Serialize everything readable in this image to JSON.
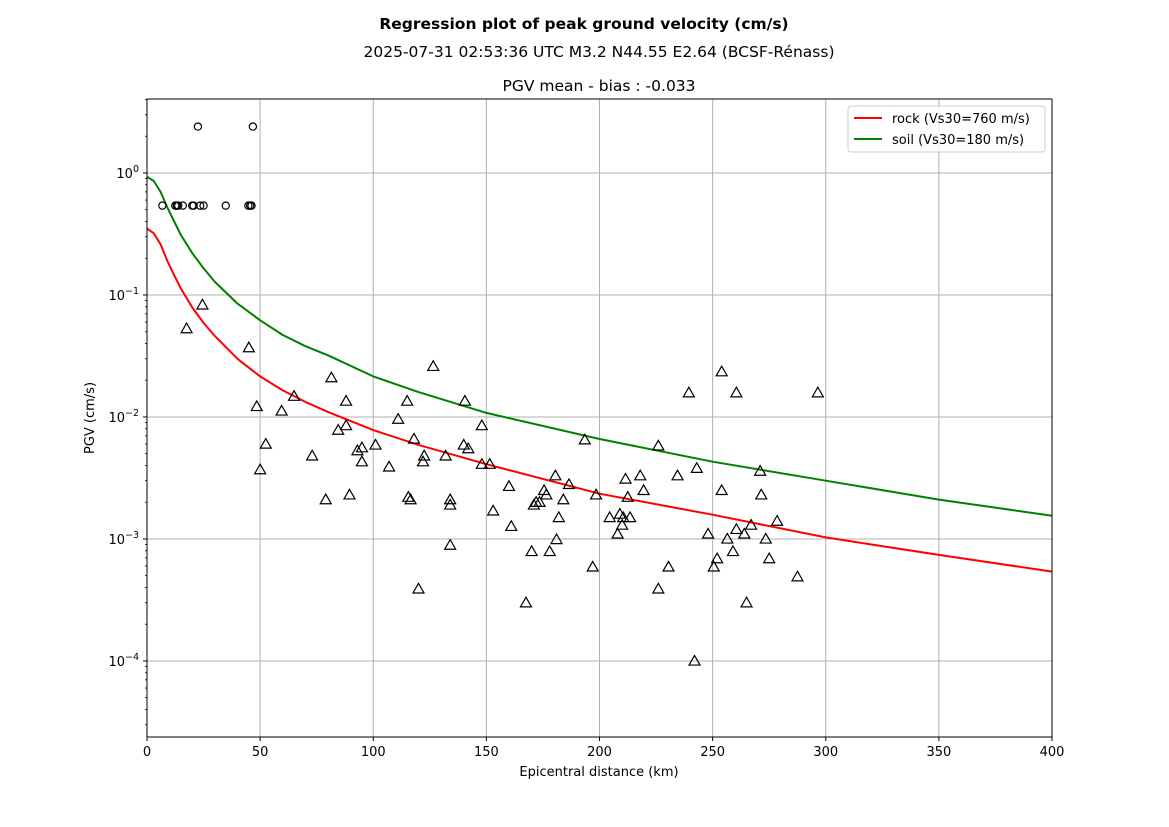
{
  "chart_data": {
    "type": "scatter",
    "title": "Regression plot of peak ground velocity (cm/s)",
    "subtitle": "2025-07-31 02:53:36 UTC M3.2 N44.55 E2.64 (BCSF-Rénass)",
    "axes_title": "PGV mean - bias : -0.033",
    "xlabel": "Epicentral distance (km)",
    "ylabel": "PGV (cm/s)",
    "xlim": [
      0,
      400
    ],
    "ylim": [
      2.38e-05,
      4.04
    ],
    "yscale": "log",
    "grid": true,
    "xticks": [
      {
        "value": 0,
        "label": "0"
      },
      {
        "value": 50,
        "label": "50"
      },
      {
        "value": 100,
        "label": "100"
      },
      {
        "value": 150,
        "label": "150"
      },
      {
        "value": 200,
        "label": "200"
      },
      {
        "value": 250,
        "label": "250"
      },
      {
        "value": 300,
        "label": "300"
      },
      {
        "value": 350,
        "label": "350"
      },
      {
        "value": 400,
        "label": "400"
      }
    ],
    "yticks": [
      {
        "exp": 0,
        "base": "10",
        "sup": "0"
      },
      {
        "exp": -1,
        "base": "10",
        "sup": "−1"
      },
      {
        "exp": -2,
        "base": "10",
        "sup": "−2"
      },
      {
        "exp": -3,
        "base": "10",
        "sup": "−3"
      },
      {
        "exp": -4,
        "base": "10",
        "sup": "−4"
      }
    ],
    "legend": {
      "placement": "top-right",
      "entries": [
        {
          "label": "rock (Vs30=760 m/s)",
          "color": "#ff0000"
        },
        {
          "label": "soil (Vs30=180 m/s)",
          "color": "#008000"
        }
      ]
    },
    "lines": [
      {
        "name": "rock (Vs30=760 m/s)",
        "color": "#ff0000",
        "x": [
          0,
          3,
          6,
          9,
          12,
          15,
          20,
          25,
          30,
          40,
          50,
          60,
          70,
          80,
          100,
          120,
          150,
          200,
          250,
          300,
          350,
          400
        ],
        "y": [
          0.35,
          0.32,
          0.26,
          0.19,
          0.145,
          0.113,
          0.079,
          0.059,
          0.046,
          0.03,
          0.0215,
          0.0165,
          0.0133,
          0.011,
          0.0078,
          0.0059,
          0.0041,
          0.00235,
          0.00158,
          0.00103,
          0.00074,
          0.00054
        ]
      },
      {
        "name": "soil (Vs30=180 m/s)",
        "color": "#008000",
        "x": [
          0,
          3,
          6,
          9,
          12,
          15,
          20,
          25,
          30,
          40,
          50,
          60,
          70,
          80,
          100,
          120,
          150,
          200,
          250,
          300,
          350,
          400
        ],
        "y": [
          0.93,
          0.86,
          0.7,
          0.52,
          0.4,
          0.31,
          0.22,
          0.165,
          0.128,
          0.085,
          0.062,
          0.047,
          0.038,
          0.032,
          0.0215,
          0.016,
          0.0108,
          0.0066,
          0.0043,
          0.003,
          0.0021,
          0.00155
        ]
      }
    ],
    "scatter": [
      {
        "name": "circles",
        "marker": "circle",
        "points": [
          [
            22.5,
            2.4
          ],
          [
            46.8,
            2.4
          ],
          [
            6.8,
            0.54
          ],
          [
            12.5,
            0.54
          ],
          [
            13.2,
            0.54
          ],
          [
            13.8,
            0.54
          ],
          [
            15.8,
            0.54
          ],
          [
            20.0,
            0.54
          ],
          [
            20.6,
            0.54
          ],
          [
            23.5,
            0.54
          ],
          [
            25.0,
            0.54
          ],
          [
            34.8,
            0.54
          ],
          [
            44.8,
            0.54
          ],
          [
            45.6,
            0.54
          ],
          [
            46.2,
            0.54
          ]
        ]
      },
      {
        "name": "triangles",
        "marker": "triangle",
        "points": [
          [
            17.5,
            0.053
          ],
          [
            24.5,
            0.083
          ],
          [
            45,
            0.037
          ],
          [
            48.5,
            0.0122
          ],
          [
            50,
            0.0037
          ],
          [
            52.5,
            0.006
          ],
          [
            59.5,
            0.0112
          ],
          [
            65,
            0.0148
          ],
          [
            73,
            0.0048
          ],
          [
            79,
            0.0021
          ],
          [
            81.5,
            0.021
          ],
          [
            84.5,
            0.0078
          ],
          [
            88,
            0.0135
          ],
          [
            88,
            0.0085
          ],
          [
            89.5,
            0.0023
          ],
          [
            93,
            0.0053
          ],
          [
            95,
            0.0043
          ],
          [
            95,
            0.0056
          ],
          [
            101,
            0.0059
          ],
          [
            107,
            0.0039
          ],
          [
            111,
            0.0096
          ],
          [
            115,
            0.0135
          ],
          [
            115.5,
            0.0022
          ],
          [
            116.5,
            0.0021
          ],
          [
            118,
            0.0066
          ],
          [
            120,
            0.00039
          ],
          [
            122,
            0.0043
          ],
          [
            122.5,
            0.0048
          ],
          [
            126.5,
            0.026
          ],
          [
            132,
            0.0048
          ],
          [
            134,
            0.0021
          ],
          [
            134,
            0.0019
          ],
          [
            134,
            0.00089
          ],
          [
            140,
            0.0059
          ],
          [
            140.5,
            0.0135
          ],
          [
            142,
            0.0055
          ],
          [
            148,
            0.0085
          ],
          [
            148,
            0.0041
          ],
          [
            151.5,
            0.0041
          ],
          [
            153,
            0.0017
          ],
          [
            160,
            0.0027
          ],
          [
            161,
            0.00127
          ],
          [
            167.5,
            0.0003
          ],
          [
            170,
            0.00079
          ],
          [
            171,
            0.0019
          ],
          [
            172,
            0.002
          ],
          [
            173.5,
            0.002
          ],
          [
            175.5,
            0.0025
          ],
          [
            176.5,
            0.0023
          ],
          [
            178,
            0.00079
          ],
          [
            180.5,
            0.0033
          ],
          [
            181,
            0.00099
          ],
          [
            182,
            0.0015
          ],
          [
            184,
            0.0021
          ],
          [
            186.5,
            0.0028
          ],
          [
            193.5,
            0.0065
          ],
          [
            197,
            0.00059
          ],
          [
            198.5,
            0.0023
          ],
          [
            204.5,
            0.0015
          ],
          [
            208,
            0.0011
          ],
          [
            209,
            0.0016
          ],
          [
            210,
            0.0013
          ],
          [
            210.5,
            0.0015
          ],
          [
            211.5,
            0.0031
          ],
          [
            212.5,
            0.0022
          ],
          [
            213.5,
            0.0015
          ],
          [
            218,
            0.0033
          ],
          [
            219.5,
            0.0025
          ],
          [
            226,
            0.0058
          ],
          [
            226,
            0.00039
          ],
          [
            230.5,
            0.00059
          ],
          [
            234.5,
            0.0033
          ],
          [
            239.5,
            0.0158
          ],
          [
            242,
            0.0001
          ],
          [
            243,
            0.0038
          ],
          [
            248,
            0.0011
          ],
          [
            250.5,
            0.00059
          ],
          [
            252,
            0.00069
          ],
          [
            254,
            0.0235
          ],
          [
            254,
            0.0025
          ],
          [
            256.5,
            0.001
          ],
          [
            259,
            0.00079
          ],
          [
            260.5,
            0.0158
          ],
          [
            260.5,
            0.0012
          ],
          [
            264,
            0.0011
          ],
          [
            265,
            0.0003
          ],
          [
            267,
            0.0013
          ],
          [
            271,
            0.0036
          ],
          [
            271.5,
            0.0023
          ],
          [
            273.5,
            0.001
          ],
          [
            275,
            0.00069
          ],
          [
            278.5,
            0.0014
          ],
          [
            287.5,
            0.00049
          ],
          [
            296.5,
            0.0158
          ]
        ]
      }
    ]
  }
}
